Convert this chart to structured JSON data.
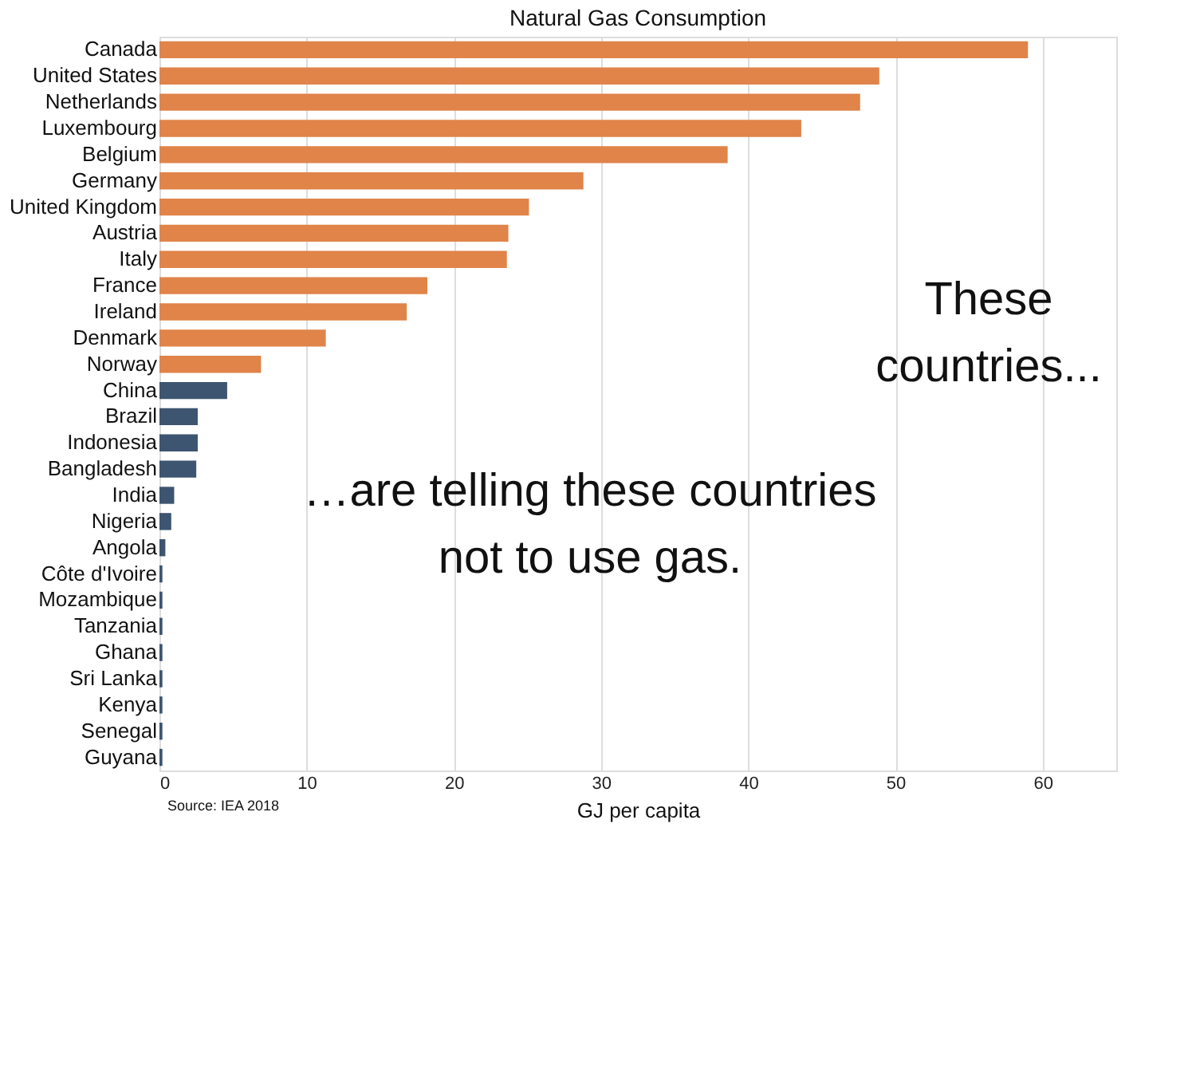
{
  "chart_data": {
    "type": "bar",
    "orientation": "horizontal",
    "title": "Natural Gas Consumption",
    "xlabel": "GJ per capita",
    "categories": [
      "Canada",
      "United States",
      "Netherlands",
      "Luxembourg",
      "Belgium",
      "Germany",
      "United Kingdom",
      "Austria",
      "Italy",
      "France",
      "Ireland",
      "Denmark",
      "Norway",
      "China",
      "Brazil",
      "Indonesia",
      "Bangladesh",
      "India",
      "Nigeria",
      "Angola",
      "Côte d'Ivoire",
      "Mozambique",
      "Tanzania",
      "Ghana",
      "Sri Lanka",
      "Kenya",
      "Senegal",
      "Guyana"
    ],
    "values": [
      59.0,
      48.9,
      47.6,
      43.6,
      38.6,
      28.8,
      25.1,
      23.7,
      23.6,
      18.2,
      16.8,
      11.3,
      6.9,
      4.6,
      2.6,
      2.6,
      2.5,
      1.0,
      0.8,
      0.4,
      0.2,
      0.2,
      0.2,
      0.2,
      0.2,
      0.2,
      0.2,
      0.2
    ],
    "colors": [
      "#e0844a",
      "#e0844a",
      "#e0844a",
      "#e0844a",
      "#e0844a",
      "#e0844a",
      "#e0844a",
      "#e0844a",
      "#e0844a",
      "#e0844a",
      "#e0844a",
      "#e0844a",
      "#e0844a",
      "#3d5570",
      "#3d5570",
      "#3d5570",
      "#3d5570",
      "#3d5570",
      "#3d5570",
      "#3d5570",
      "#3d5570",
      "#3d5570",
      "#3d5570",
      "#3d5570",
      "#3d5570",
      "#3d5570",
      "#3d5570",
      "#3d5570"
    ],
    "xlim": [
      0,
      65
    ],
    "xticks": [
      0,
      10,
      20,
      30,
      40,
      50,
      60
    ],
    "grid": "x",
    "annotations": [
      "These countries...",
      "…are telling these countries not to use gas.",
      "Source: IEA 2018"
    ]
  }
}
